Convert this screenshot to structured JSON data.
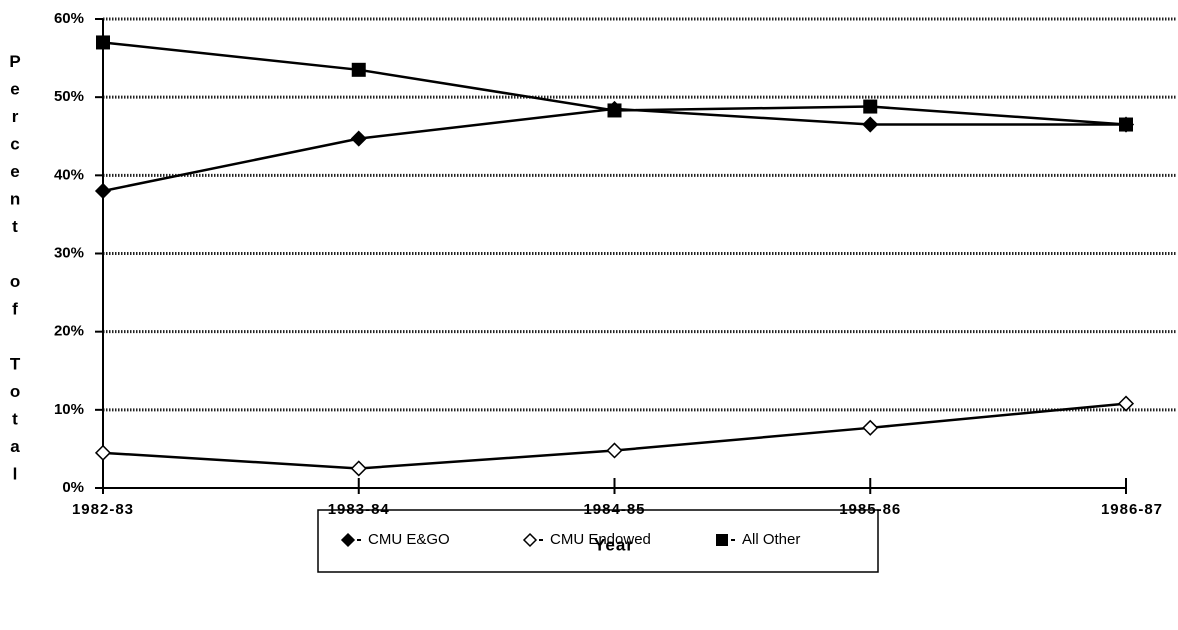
{
  "chart_data": {
    "type": "line",
    "categories": [
      "1982-83",
      "1983-84",
      "1984-85",
      "1985-86",
      "1986-87"
    ],
    "series": [
      {
        "name": "CMU E&GO",
        "color": "#000000",
        "marker": "diamond-filled",
        "values": [
          38,
          44.7,
          48.5,
          46.5,
          46.5
        ]
      },
      {
        "name": "CMU Endowed",
        "color": "#000000",
        "marker": "diamond-open",
        "values": [
          4.5,
          2.5,
          4.8,
          7.7,
          10.8
        ]
      },
      {
        "name": "All Other",
        "color": "#000000",
        "marker": "square",
        "values": [
          57,
          53.5,
          48.3,
          48.8,
          46.5
        ]
      }
    ],
    "ylim": [
      0,
      60
    ],
    "yticks": [
      {
        "value": 0,
        "label": "0%"
      },
      {
        "value": 10,
        "label": "10%"
      },
      {
        "value": 20,
        "label": "20%"
      },
      {
        "value": 30,
        "label": "30%"
      },
      {
        "value": 40,
        "label": "40%"
      },
      {
        "value": 50,
        "label": "50%"
      },
      {
        "value": 60,
        "label": "60%"
      }
    ],
    "grid": true,
    "x_label": "Year",
    "y_label": "Percent of Total",
    "legend": "bottom"
  }
}
